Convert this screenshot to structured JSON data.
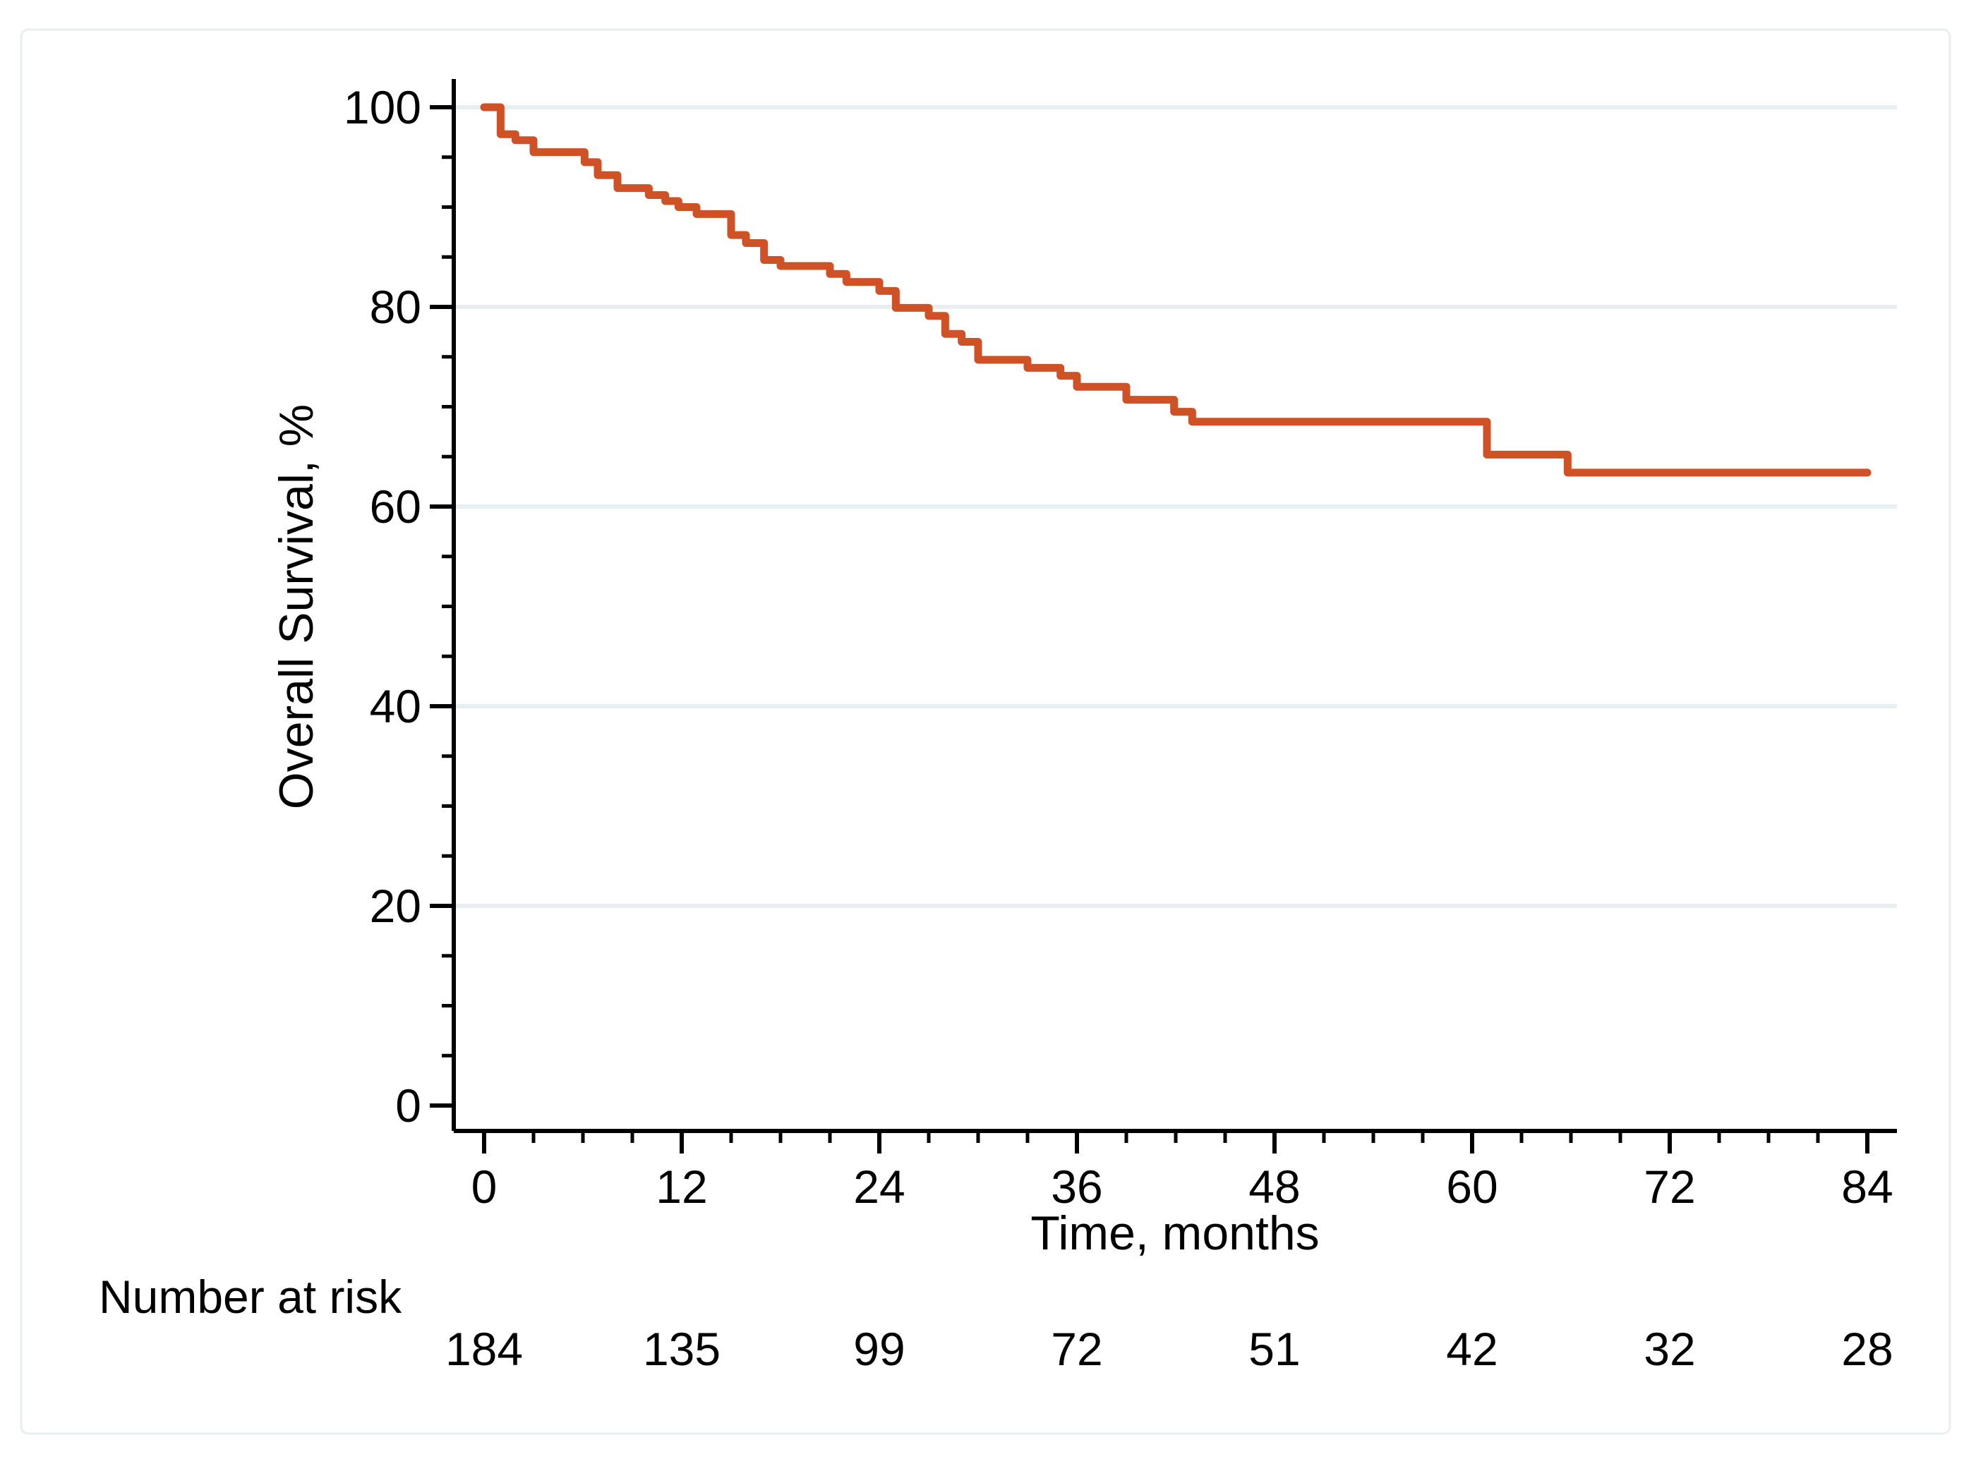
{
  "figure": {
    "background": "#ffffff"
  },
  "colors": {
    "curve": "#ce5226",
    "gridline": "#e9eef1",
    "axis": "#000000",
    "card_border": "#e8eef0"
  },
  "chart_data": {
    "type": "line",
    "subtype": "kaplan-meier-step",
    "title": "",
    "xlabel": "Time, months",
    "ylabel": "Overall Survival, %",
    "xlim": [
      0,
      84
    ],
    "ylim": [
      0,
      100
    ],
    "x_ticks": [
      0,
      12,
      24,
      36,
      48,
      60,
      72,
      84
    ],
    "y_ticks": [
      0,
      20,
      40,
      60,
      80,
      100
    ],
    "x_minor_tick_step": 3,
    "y_minor_tick_step": 5,
    "grid": {
      "values": [
        20,
        40,
        60,
        80,
        100
      ],
      "on": true
    },
    "legend": {
      "shown": false
    },
    "series": [
      {
        "name": "Overall Survival",
        "color": "#ce5226",
        "end_time": 84,
        "steps": [
          [
            0,
            100.0
          ],
          [
            1.0,
            97.3
          ],
          [
            1.9,
            96.7
          ],
          [
            3.0,
            95.5
          ],
          [
            6.1,
            94.5
          ],
          [
            6.9,
            93.2
          ],
          [
            8.1,
            91.9
          ],
          [
            10.0,
            91.2
          ],
          [
            11.0,
            90.6
          ],
          [
            11.8,
            90.0
          ],
          [
            12.9,
            89.3
          ],
          [
            15.0,
            87.2
          ],
          [
            15.9,
            86.4
          ],
          [
            17.0,
            84.7
          ],
          [
            18.0,
            84.1
          ],
          [
            21.0,
            83.3
          ],
          [
            22.0,
            82.5
          ],
          [
            24.0,
            81.6
          ],
          [
            25.0,
            79.9
          ],
          [
            27.0,
            79.1
          ],
          [
            28.0,
            77.3
          ],
          [
            29.0,
            76.5
          ],
          [
            30.0,
            74.7
          ],
          [
            33.0,
            73.9
          ],
          [
            35.0,
            73.1
          ],
          [
            36.0,
            72.0
          ],
          [
            39.0,
            70.7
          ],
          [
            41.9,
            69.5
          ],
          [
            43.0,
            68.5
          ],
          [
            60.9,
            65.2
          ],
          [
            65.8,
            63.4
          ]
        ]
      }
    ],
    "risk_table": {
      "label": "Number at risk",
      "times": [
        0,
        12,
        24,
        36,
        48,
        60,
        72,
        84
      ],
      "counts": [
        184,
        135,
        99,
        72,
        51,
        42,
        32,
        28
      ]
    }
  }
}
